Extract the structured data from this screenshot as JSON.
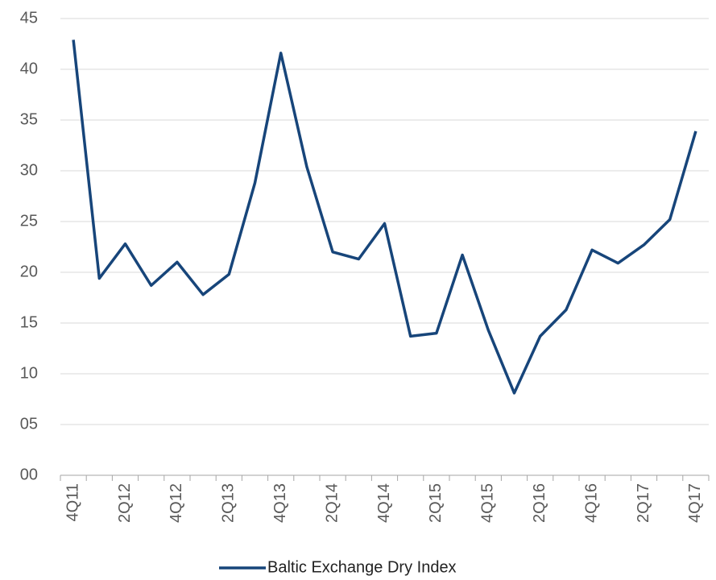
{
  "chart_data": {
    "type": "line",
    "categories": [
      "4Q11",
      null,
      "2Q12",
      null,
      "4Q12",
      null,
      "2Q13",
      null,
      "4Q13",
      null,
      "2Q14",
      null,
      "4Q14",
      null,
      "2Q15",
      null,
      "4Q15",
      null,
      "2Q16",
      null,
      "4Q16",
      null,
      "2Q17",
      null,
      "4Q17"
    ],
    "series": [
      {
        "name": "Baltic Exchange Dry Index",
        "color": "#17457a",
        "values": [
          42.9,
          19.4,
          22.8,
          18.7,
          21.0,
          17.8,
          19.8,
          28.8,
          41.6,
          30.4,
          22.0,
          21.3,
          24.8,
          13.7,
          14.0,
          21.7,
          14.3,
          8.1,
          13.7,
          16.3,
          22.2,
          20.9,
          22.7,
          25.2,
          33.9
        ]
      }
    ],
    "ylim": [
      0,
      45
    ],
    "yticks": [
      {
        "value": 0,
        "label": "00"
      },
      {
        "value": 5,
        "label": "05"
      },
      10,
      15,
      20,
      25,
      30,
      35,
      40,
      45
    ],
    "grid": true,
    "legend": "bottom"
  }
}
